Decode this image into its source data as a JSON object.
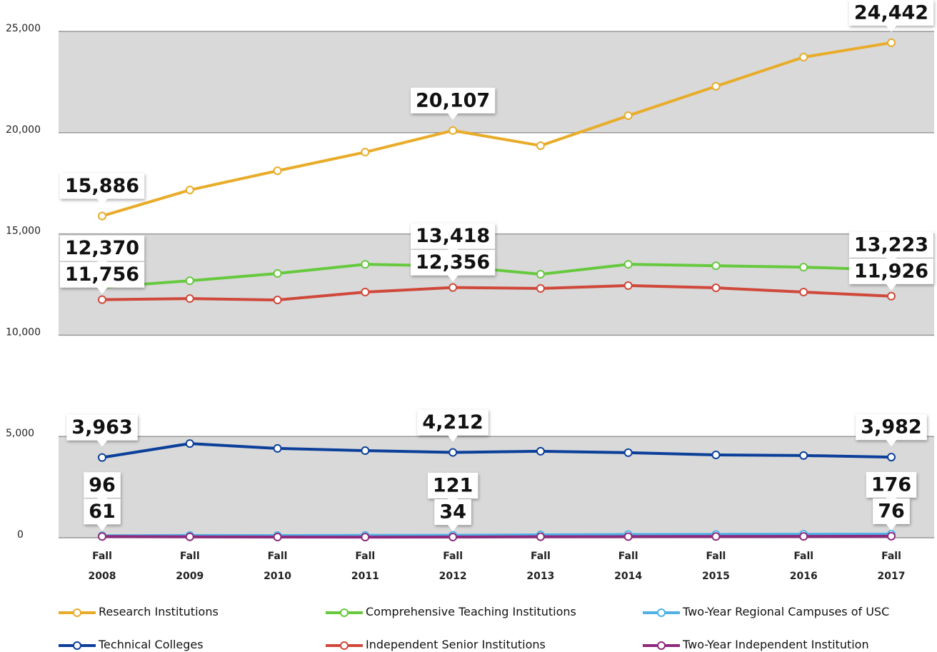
{
  "chart_data": {
    "type": "line",
    "categories": [
      "Fall 2008",
      "Fall 2009",
      "Fall 2010",
      "Fall 2011",
      "Fall 2012",
      "Fall 2013",
      "Fall 2014",
      "Fall 2015",
      "Fall 2016",
      "Fall 2017"
    ],
    "ylim": [
      0,
      25000
    ],
    "yticks": [
      0,
      {
        "value": 5000,
        "label": "5,000"
      },
      {
        "value": 10000,
        "label": "10,000"
      },
      {
        "value": 15000,
        "label": "15,000"
      },
      {
        "value": 20000,
        "label": "20,000"
      },
      {
        "value": 25000,
        "label": "25,000"
      }
    ],
    "grid": true,
    "legend": "bottom",
    "series": [
      {
        "name": "Research Institutions",
        "color": "#e8ac2a",
        "values": [
          15886,
          17170,
          18120,
          19040,
          20107,
          19360,
          20840,
          22290,
          23730,
          24442
        ],
        "value_labels": [
          "15,886",
          null,
          null,
          null,
          "20,107",
          null,
          null,
          null,
          null,
          "24,442"
        ]
      },
      {
        "name": "Comprehensive Teaching Institutions",
        "color": "#66c93e",
        "values": [
          12370,
          12690,
          13050,
          13500,
          13418,
          13010,
          13500,
          13430,
          13360,
          13223
        ],
        "value_labels": [
          "12,370",
          null,
          null,
          null,
          "13,418",
          null,
          null,
          null,
          null,
          "13,223"
        ]
      },
      {
        "name": "Two-Year Regional Campuses of USC",
        "color": "#4fb1e8",
        "values": [
          96,
          110,
          105,
          115,
          121,
          140,
          160,
          165,
          170,
          176
        ],
        "value_labels": [
          "96",
          null,
          null,
          null,
          "121",
          null,
          null,
          null,
          null,
          "176"
        ]
      },
      {
        "name": "Technical Colleges",
        "color": "#0b3f9a",
        "values": [
          3963,
          4650,
          4410,
          4300,
          4212,
          4270,
          4200,
          4090,
          4060,
          3982
        ],
        "value_labels": [
          "3,963",
          null,
          null,
          null,
          "4,212",
          null,
          null,
          null,
          null,
          "3,982"
        ]
      },
      {
        "name": "Independent Senior Institutions",
        "color": "#d0483a",
        "values": [
          11756,
          11810,
          11740,
          12130,
          12356,
          12310,
          12450,
          12340,
          12130,
          11926
        ],
        "value_labels": [
          "11,756",
          null,
          null,
          null,
          "12,356",
          null,
          null,
          null,
          null,
          "11,926"
        ]
      },
      {
        "name": "Two-Year Independent Institution",
        "color": "#8e2a7d",
        "values": [
          61,
          45,
          35,
          30,
          34,
          50,
          55,
          60,
          65,
          76
        ],
        "value_labels": [
          "61",
          null,
          null,
          null,
          "34",
          null,
          null,
          null,
          null,
          "76"
        ]
      }
    ]
  }
}
